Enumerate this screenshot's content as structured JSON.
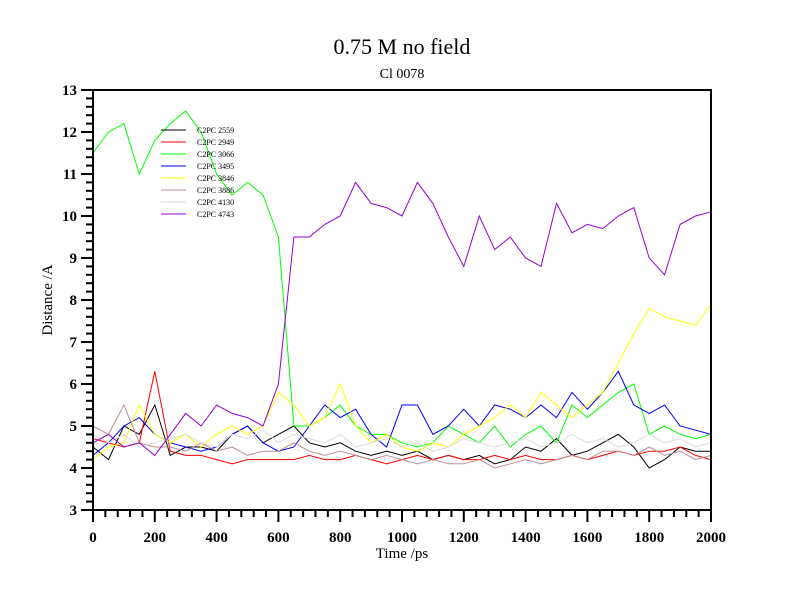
{
  "chart_data": {
    "type": "line",
    "title": "0.75 M no field",
    "subtitle": "Cl 0078",
    "xlabel": "Time /ps",
    "ylabel": "Distance /A",
    "xlim": [
      0,
      2000
    ],
    "ylim": [
      3,
      13
    ],
    "xticks": [
      0,
      200,
      400,
      600,
      800,
      1000,
      1200,
      1400,
      1600,
      1800,
      2000
    ],
    "yticks": [
      3,
      4,
      5,
      6,
      7,
      8,
      9,
      10,
      11,
      12,
      13
    ],
    "grid": false,
    "legend_placement": "top-left",
    "x": [
      0,
      50,
      100,
      150,
      200,
      250,
      300,
      350,
      400,
      450,
      500,
      550,
      600,
      650,
      700,
      750,
      800,
      850,
      900,
      950,
      1000,
      1050,
      1100,
      1150,
      1200,
      1250,
      1300,
      1350,
      1400,
      1450,
      1500,
      1550,
      1600,
      1650,
      1700,
      1750,
      1800,
      1850,
      1900,
      1950,
      2000
    ],
    "series": [
      {
        "name": "C2PC 2559",
        "color": "#000000",
        "values": [
          4.5,
          4.2,
          5,
          4.8,
          5.5,
          4.3,
          4.5,
          4.5,
          4.4,
          4.8,
          5,
          4.6,
          4.8,
          5,
          4.6,
          4.5,
          4.6,
          4.4,
          4.3,
          4.4,
          4.3,
          4.4,
          4.2,
          4.3,
          4.2,
          4.3,
          4.1,
          4.2,
          4.5,
          4.4,
          4.7,
          4.3,
          4.4,
          4.6,
          4.8,
          4.5,
          4,
          4.2,
          4.5,
          4.4,
          4.4
        ]
      },
      {
        "name": "C2PC 2949",
        "color": "#ff0000",
        "values": [
          4.7,
          4.6,
          4.5,
          4.6,
          6.3,
          4.4,
          4.3,
          4.3,
          4.2,
          4.1,
          4.2,
          4.2,
          4.2,
          4.2,
          4.3,
          4.2,
          4.2,
          4.3,
          4.2,
          4.1,
          4.2,
          4.3,
          4.2,
          4.3,
          4.2,
          4.2,
          4.3,
          4.2,
          4.3,
          4.2,
          4.2,
          4.3,
          4.2,
          4.3,
          4.4,
          4.3,
          4.4,
          4.4,
          4.5,
          4.3,
          4.2
        ]
      },
      {
        "name": "C2PC 3066",
        "color": "#00ff00",
        "values": [
          11.5,
          12,
          12.2,
          11,
          11.8,
          12.2,
          12.5,
          12,
          11,
          10.5,
          10.8,
          10.5,
          9.5,
          5,
          5,
          5.2,
          5.5,
          5,
          4.8,
          4.8,
          4.6,
          4.5,
          4.6,
          5,
          4.8,
          4.6,
          5,
          4.5,
          4.8,
          5,
          4.6,
          5.5,
          5.2,
          5.5,
          5.8,
          6,
          4.8,
          5,
          4.8,
          4.7,
          4.8
        ]
      },
      {
        "name": "C2PC 3495",
        "color": "#0000ff",
        "values": [
          4.3,
          4.6,
          5,
          5.2,
          4.8,
          4.6,
          4.5,
          4.4,
          4.5,
          4.8,
          5,
          4.6,
          4.4,
          4.5,
          5,
          5.5,
          5.2,
          5.4,
          4.8,
          4.5,
          5.5,
          5.5,
          4.8,
          5,
          5.4,
          5,
          5.5,
          5.4,
          5.2,
          5.5,
          5.2,
          5.8,
          5.4,
          5.8,
          6.3,
          5.5,
          5.3,
          5.5,
          5,
          4.9,
          4.8
        ]
      },
      {
        "name": "C2PC 3846",
        "color": "#ffff00",
        "values": [
          4.2,
          4.5,
          4.6,
          5.5,
          4.8,
          4.6,
          4.8,
          4.5,
          4.8,
          5,
          4.8,
          5,
          5.8,
          5.5,
          5,
          5.2,
          6,
          5,
          4.6,
          4.8,
          4.5,
          4.4,
          4.6,
          4.5,
          4.8,
          5,
          5.2,
          5.5,
          5.2,
          5.8,
          5.5,
          5.2,
          5.5,
          5.8,
          6.5,
          7.2,
          7.8,
          7.6,
          7.5,
          7.4,
          7.9
        ]
      },
      {
        "name": "C2PC 3886",
        "color": "#bc8f8f",
        "values": [
          5,
          4.8,
          5.5,
          4.6,
          4.5,
          4.5,
          4.4,
          4.6,
          4.4,
          4.5,
          4.3,
          4.4,
          4.4,
          4.6,
          4.4,
          4.3,
          4.4,
          4.3,
          4.2,
          4.3,
          4.2,
          4.1,
          4.2,
          4.1,
          4.1,
          4.2,
          4,
          4.1,
          4.2,
          4.1,
          4.2,
          4.3,
          4.2,
          4.4,
          4.4,
          4.3,
          4.5,
          4.3,
          4.4,
          4.2,
          4.3
        ]
      },
      {
        "name": "C2PC 4130",
        "color": "#dcdcdc",
        "values": [
          4.8,
          4.6,
          4.8,
          4.5,
          4.6,
          4.7,
          4.8,
          4.6,
          4.5,
          4.8,
          4.7,
          4.9,
          4.6,
          4.8,
          4.7,
          4.6,
          4.8,
          4.5,
          4.6,
          4.7,
          4.5,
          4.6,
          4.4,
          4.5,
          4.7,
          4.6,
          4.5,
          4.6,
          4.7,
          4.5,
          4.6,
          4.8,
          4.6,
          4.7,
          4.5,
          4.6,
          4.8,
          4.6,
          4.7,
          4.5,
          4.6
        ]
      },
      {
        "name": "C2PC 4743",
        "color": "#9400d3",
        "values": [
          4.6,
          4.8,
          4.5,
          4.6,
          4.3,
          4.8,
          5.3,
          5,
          5.5,
          5.3,
          5.2,
          5,
          6,
          9.5,
          9.5,
          9.8,
          10,
          10.8,
          10.3,
          10.2,
          10,
          10.8,
          10.3,
          9.5,
          8.8,
          10,
          9.2,
          9.5,
          9,
          8.8,
          10.3,
          9.6,
          9.8,
          9.7,
          10,
          10.2,
          9,
          8.6,
          9.8,
          10,
          10.1
        ]
      }
    ]
  }
}
